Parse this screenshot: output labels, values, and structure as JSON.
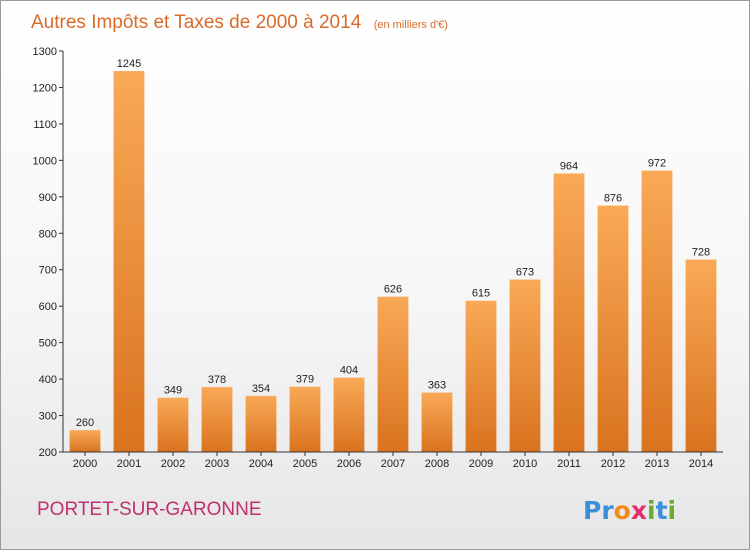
{
  "title": "Autres Impôts et Taxes de 2000 à 2014",
  "subtitle": "(en milliers d'€)",
  "commune": "PORTET-SUR-GARONNE",
  "logo": {
    "text": "Proxiti",
    "letters": [
      "P",
      "r",
      "o",
      "x",
      "i",
      "t",
      "i"
    ],
    "letter_colors": [
      "#3b8fd9",
      "#3b8fd9",
      "#f08a1c",
      "#e1306c",
      "#6aaa2e",
      "#3b8fd9",
      "#6aaa2e"
    ]
  },
  "colors": {
    "bar_light": "#f9a957",
    "bar_dark": "#d9731f",
    "title": "#d96a2a",
    "commune": "#c0306e"
  },
  "chart_data": {
    "type": "bar",
    "categories": [
      "2000",
      "2001",
      "2002",
      "2003",
      "2004",
      "2005",
      "2006",
      "2007",
      "2008",
      "2009",
      "2010",
      "2011",
      "2012",
      "2013",
      "2014"
    ],
    "values": [
      260,
      1245,
      349,
      378,
      354,
      379,
      404,
      626,
      363,
      615,
      673,
      964,
      876,
      972,
      728
    ],
    "title": "Autres Impôts et Taxes de 2000 à 2014",
    "subtitle": "(en milliers d'€)",
    "xlabel": "",
    "ylabel": "",
    "ylim": [
      200,
      1300
    ],
    "yticks": [
      200,
      300,
      400,
      500,
      600,
      700,
      800,
      900,
      1000,
      1100,
      1200,
      1300
    ],
    "grid": false,
    "data_labels": true
  }
}
